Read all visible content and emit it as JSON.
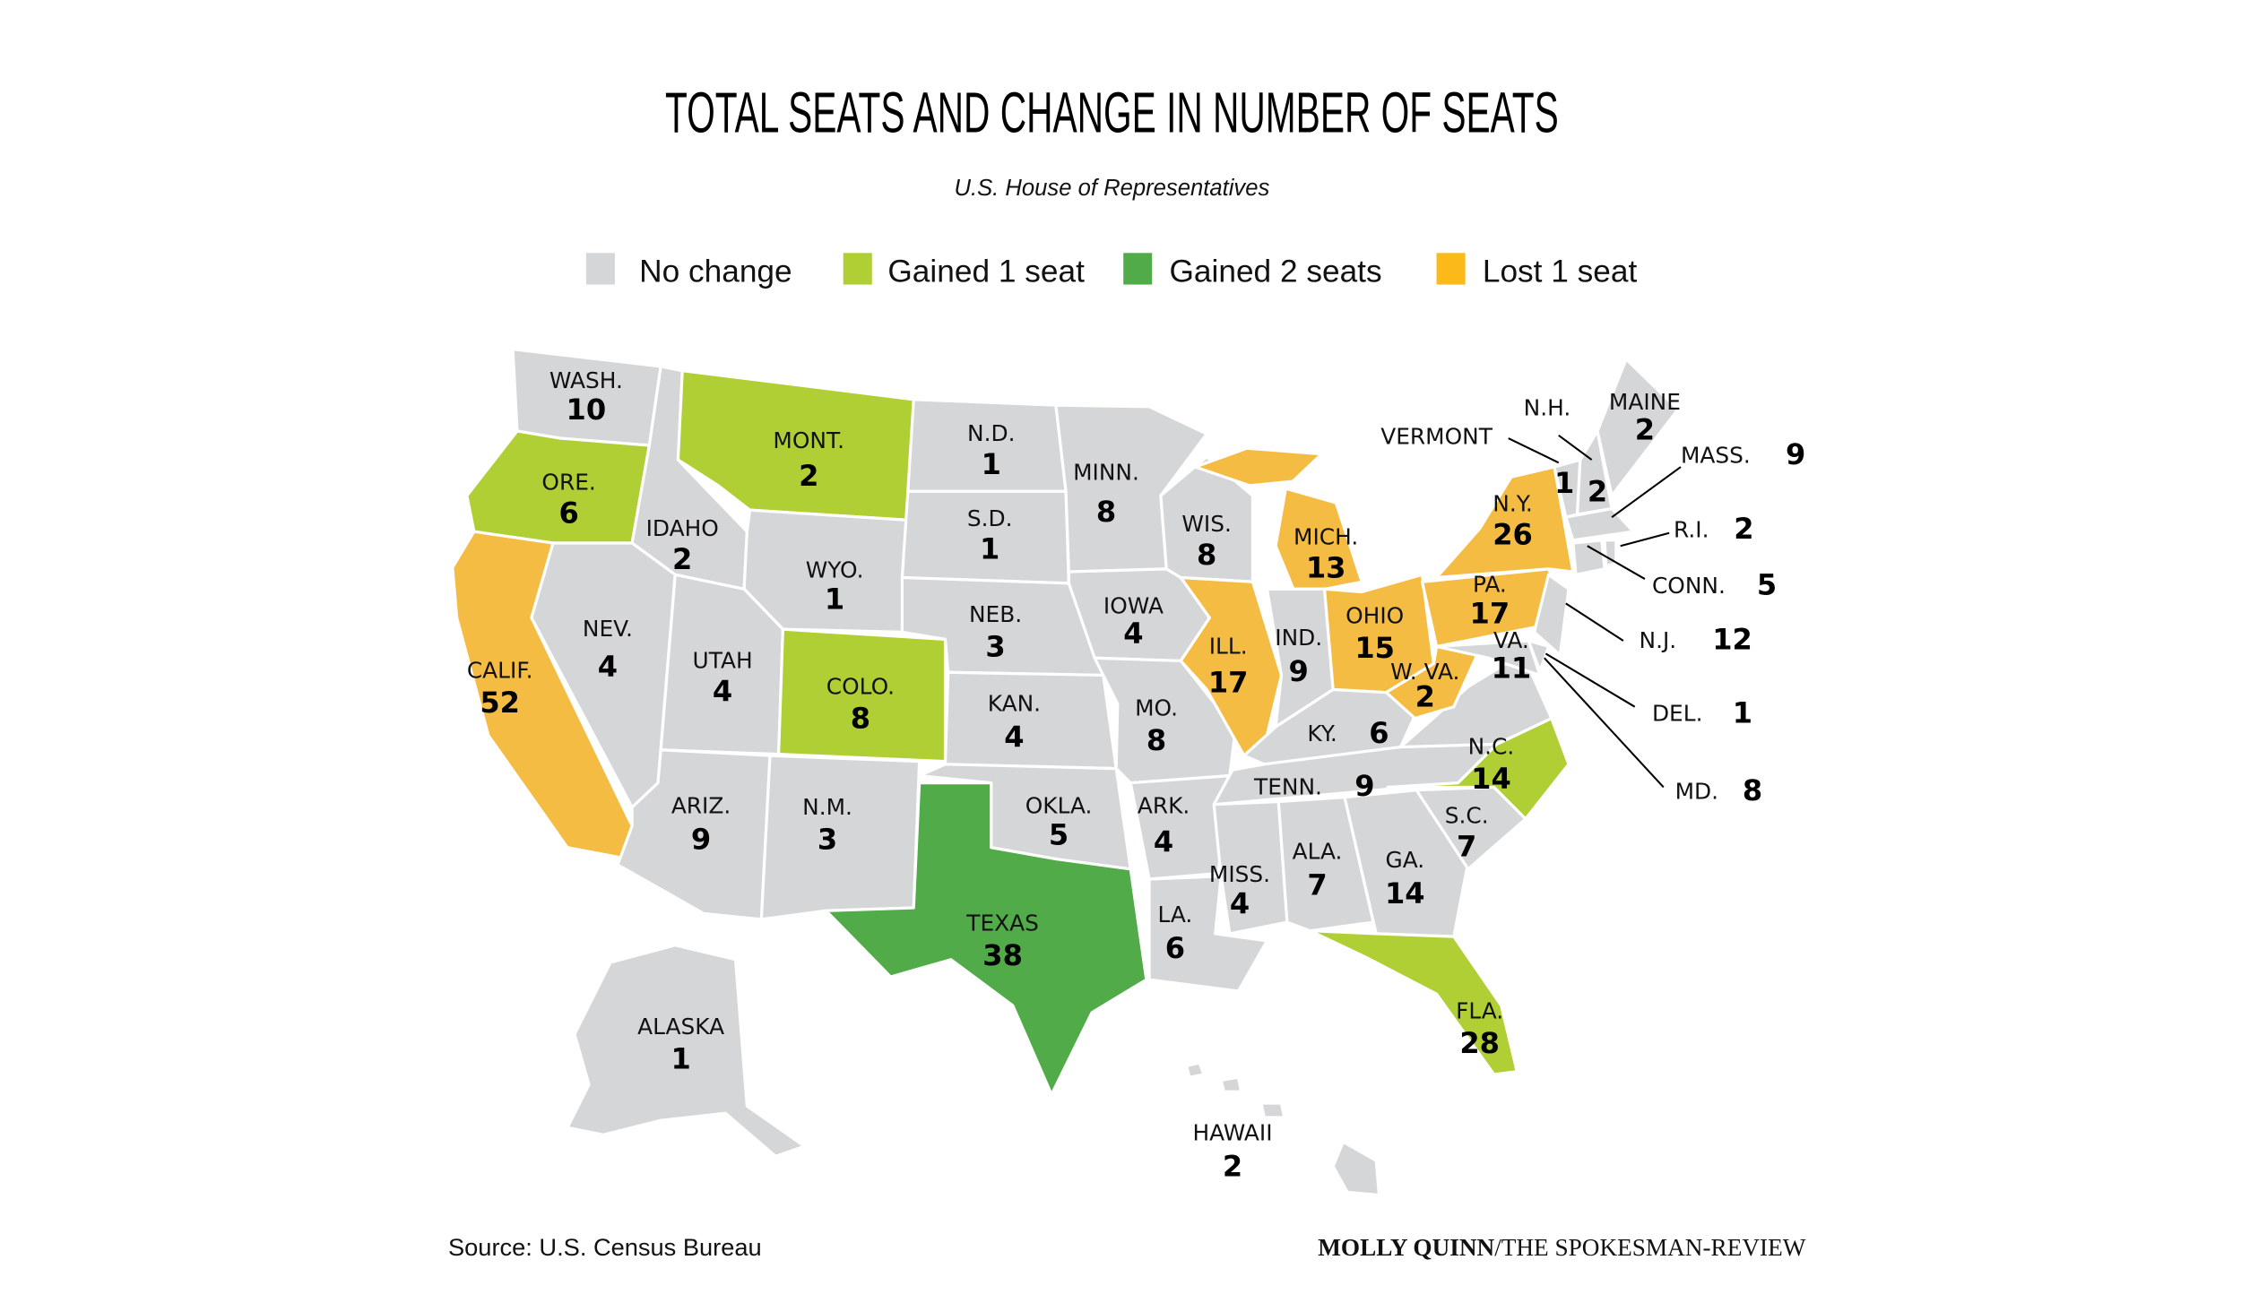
{
  "title": "TOTAL SEATS AND CHANGE IN NUMBER OF SEATS",
  "subtitle": "U.S. House of Representatives",
  "legend": [
    {
      "label": "No change",
      "status": "none"
    },
    {
      "label": "Gained 1 seat",
      "status": "gain1"
    },
    {
      "label": "Gained 2 seats",
      "status": "gain2"
    },
    {
      "label": "Lost 1 seat",
      "status": "lost1"
    }
  ],
  "colors": {
    "none": "#d5d6d8",
    "gain1": "#afcf35",
    "gain2": "#50ab48",
    "lost1": "#f5bc44",
    "lost1_legend": "#fbb91a"
  },
  "states": [
    {
      "key": "WA",
      "label": "WASH.",
      "seats": "10",
      "status": "none"
    },
    {
      "key": "OR",
      "label": "ORE.",
      "seats": "6",
      "status": "gain1"
    },
    {
      "key": "CA",
      "label": "CALIF.",
      "seats": "52",
      "status": "lost1"
    },
    {
      "key": "ID",
      "label": "IDAHO",
      "seats": "2",
      "status": "none"
    },
    {
      "key": "MT",
      "label": "MONT.",
      "seats": "2",
      "status": "gain1"
    },
    {
      "key": "WY",
      "label": "WYO.",
      "seats": "1",
      "status": "none"
    },
    {
      "key": "NV",
      "label": "NEV.",
      "seats": "4",
      "status": "none"
    },
    {
      "key": "UT",
      "label": "UTAH",
      "seats": "4",
      "status": "none"
    },
    {
      "key": "CO",
      "label": "COLO.",
      "seats": "8",
      "status": "gain1"
    },
    {
      "key": "AZ",
      "label": "ARIZ.",
      "seats": "9",
      "status": "none"
    },
    {
      "key": "NM",
      "label": "N.M.",
      "seats": "3",
      "status": "none"
    },
    {
      "key": "ND",
      "label": "N.D.",
      "seats": "1",
      "status": "none"
    },
    {
      "key": "SD",
      "label": "S.D.",
      "seats": "1",
      "status": "none"
    },
    {
      "key": "NE",
      "label": "NEB.",
      "seats": "3",
      "status": "none"
    },
    {
      "key": "KS",
      "label": "KAN.",
      "seats": "4",
      "status": "none"
    },
    {
      "key": "OK",
      "label": "OKLA.",
      "seats": "5",
      "status": "none"
    },
    {
      "key": "TX",
      "label": "TEXAS",
      "seats": "38",
      "status": "gain2"
    },
    {
      "key": "MN",
      "label": "MINN.",
      "seats": "8",
      "status": "none"
    },
    {
      "key": "IA",
      "label": "IOWA",
      "seats": "4",
      "status": "none"
    },
    {
      "key": "MO",
      "label": "MO.",
      "seats": "8",
      "status": "none"
    },
    {
      "key": "AR",
      "label": "ARK.",
      "seats": "4",
      "status": "none"
    },
    {
      "key": "LA",
      "label": "LA.",
      "seats": "6",
      "status": "none"
    },
    {
      "key": "WI",
      "label": "WIS.",
      "seats": "8",
      "status": "none"
    },
    {
      "key": "IL",
      "label": "ILL.",
      "seats": "17",
      "status": "lost1"
    },
    {
      "key": "MI",
      "label": "MICH.",
      "seats": "13",
      "status": "lost1"
    },
    {
      "key": "IN",
      "label": "IND.",
      "seats": "9",
      "status": "none"
    },
    {
      "key": "OH",
      "label": "OHIO",
      "seats": "15",
      "status": "lost1"
    },
    {
      "key": "KY",
      "label": "KY.",
      "seats": "6",
      "status": "none"
    },
    {
      "key": "TN",
      "label": "TENN.",
      "seats": "9",
      "status": "none"
    },
    {
      "key": "MS",
      "label": "MISS.",
      "seats": "4",
      "status": "none"
    },
    {
      "key": "AL",
      "label": "ALA.",
      "seats": "7",
      "status": "none"
    },
    {
      "key": "GA",
      "label": "GA.",
      "seats": "14",
      "status": "none"
    },
    {
      "key": "FL",
      "label": "FLA.",
      "seats": "28",
      "status": "gain1"
    },
    {
      "key": "SC",
      "label": "S.C.",
      "seats": "7",
      "status": "none"
    },
    {
      "key": "NC",
      "label": "N.C.",
      "seats": "14",
      "status": "gain1"
    },
    {
      "key": "VA",
      "label": "VA.",
      "seats": "11",
      "status": "none"
    },
    {
      "key": "WV",
      "label": "W. VA.",
      "seats": "2",
      "status": "lost1"
    },
    {
      "key": "PA",
      "label": "PA.",
      "seats": "17",
      "status": "lost1"
    },
    {
      "key": "NY",
      "label": "N.Y.",
      "seats": "26",
      "status": "lost1"
    },
    {
      "key": "VT",
      "label": "VERMONT",
      "seats": "1",
      "status": "none"
    },
    {
      "key": "NH",
      "label": "N.H.",
      "seats": "2",
      "status": "none"
    },
    {
      "key": "ME",
      "label": "MAINE",
      "seats": "2",
      "status": "none"
    },
    {
      "key": "MA",
      "label": "MASS.",
      "seats": "9",
      "status": "none"
    },
    {
      "key": "RI",
      "label": "R.I.",
      "seats": "2",
      "status": "none"
    },
    {
      "key": "CT",
      "label": "CONN.",
      "seats": "5",
      "status": "none"
    },
    {
      "key": "NJ",
      "label": "N.J.",
      "seats": "12",
      "status": "none"
    },
    {
      "key": "DE",
      "label": "DEL.",
      "seats": "1",
      "status": "none"
    },
    {
      "key": "MD",
      "label": "MD.",
      "seats": "8",
      "status": "none"
    },
    {
      "key": "AK",
      "label": "ALASKA",
      "seats": "1",
      "status": "none"
    },
    {
      "key": "HI",
      "label": "HAWAII",
      "seats": "2",
      "status": "none"
    }
  ],
  "source": "Source: U.S. Census Bureau",
  "credit": {
    "author": "MOLLY QUINN",
    "outlet": "/THE SPOKESMAN-REVIEW"
  }
}
